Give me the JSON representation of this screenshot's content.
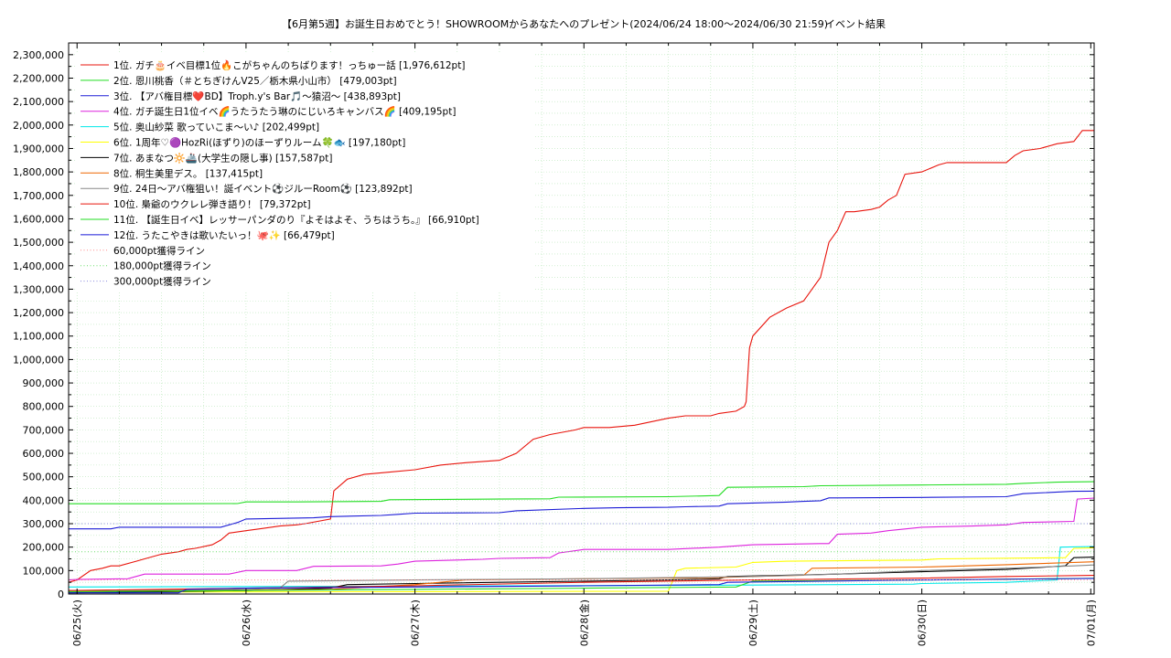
{
  "chart_data": {
    "type": "line",
    "title": "【6月第5週】お誕生日おめでとう！SHOWROOMからあなたへのプレゼント(2024/06/24 18:00〜2024/06/30 21:59)",
    "subtitle": "イベント結果",
    "ylim": [
      0,
      2350000
    ],
    "yticks": [
      0,
      100000,
      200000,
      300000,
      400000,
      500000,
      600000,
      700000,
      800000,
      900000,
      1000000,
      1100000,
      1200000,
      1300000,
      1400000,
      1500000,
      1600000,
      1700000,
      1800000,
      1900000,
      2000000,
      2100000,
      2200000,
      2300000
    ],
    "ytick_labels": [
      "0",
      "100,000",
      "200,000",
      "300,000",
      "400,000",
      "500,000",
      "600,000",
      "700,000",
      "800,000",
      "900,000",
      "1,000,000",
      "1,100,000",
      "1,200,000",
      "1,300,000",
      "1,400,000",
      "1,500,000",
      "1,600,000",
      "1,700,000",
      "1,800,000",
      "1,900,000",
      "2,000,000",
      "2,100,000",
      "2,200,000",
      "2,300,000"
    ],
    "xlim": [
      -0.05,
      6.02
    ],
    "xticks": [
      0,
      1,
      2,
      3,
      4,
      5,
      6
    ],
    "xtick_labels": [
      "06/25(火)",
      "06/26(水)",
      "06/27(木)",
      "06/28(金)",
      "06/29(土)",
      "06/30(日)",
      "07/01(月)"
    ],
    "grid": true,
    "legend_position": "top-left",
    "series": [
      {
        "name": "1位. ガチ🎂イベ目標1位🔥こがちゃんのちばります！っちゅー話 [1,976,612pt]",
        "color": "#e8140c",
        "style": "solid",
        "x": [
          -0.05,
          0.0,
          0.08,
          0.15,
          0.2,
          0.25,
          0.35,
          0.4,
          0.5,
          0.6,
          0.65,
          0.7,
          0.8,
          0.85,
          0.9,
          1.0,
          1.1,
          1.2,
          1.3,
          1.35,
          1.5,
          1.52,
          1.6,
          1.7,
          1.85,
          2.0,
          2.15,
          2.3,
          2.5,
          2.6,
          2.7,
          2.8,
          2.95,
          3.0,
          3.15,
          3.3,
          3.5,
          3.6,
          3.75,
          3.8,
          3.9,
          3.95,
          3.96,
          3.98,
          4.0,
          4.1,
          4.2,
          4.3,
          4.35,
          4.4,
          4.45,
          4.5,
          4.55,
          4.6,
          4.7,
          4.75,
          4.8,
          4.85,
          4.9,
          5.0,
          5.1,
          5.15,
          5.2,
          5.5,
          5.55,
          5.6,
          5.7,
          5.8,
          5.9,
          5.95,
          6.02
        ],
        "y": [
          50000,
          60000,
          100000,
          110000,
          120000,
          120000,
          140000,
          150000,
          170000,
          180000,
          190000,
          195000,
          210000,
          230000,
          260000,
          270000,
          280000,
          290000,
          295000,
          300000,
          320000,
          440000,
          490000,
          510000,
          520000,
          530000,
          550000,
          560000,
          570000,
          600000,
          660000,
          680000,
          700000,
          710000,
          710000,
          720000,
          750000,
          760000,
          760000,
          770000,
          780000,
          800000,
          820000,
          1050000,
          1100000,
          1180000,
          1220000,
          1250000,
          1300000,
          1350000,
          1500000,
          1550000,
          1630000,
          1630000,
          1640000,
          1650000,
          1680000,
          1700000,
          1790000,
          1800000,
          1830000,
          1840000,
          1840000,
          1840000,
          1870000,
          1890000,
          1900000,
          1920000,
          1930000,
          1976612,
          1976612
        ]
      },
      {
        "name": "2位. 恩川桃香（＃とちぎけんV25／栃木県小山市） [479,003pt]",
        "color": "#22dd22",
        "style": "solid",
        "x": [
          -0.05,
          0.5,
          0.95,
          1.0,
          1.3,
          1.8,
          1.85,
          2.5,
          2.8,
          2.85,
          3.5,
          3.8,
          3.85,
          4.3,
          4.4,
          5.0,
          5.5,
          5.6,
          5.8,
          6.02
        ],
        "y": [
          385000,
          385000,
          386000,
          393000,
          393000,
          395000,
          402000,
          405000,
          406000,
          413000,
          415000,
          420000,
          455000,
          458000,
          462000,
          465000,
          468000,
          472000,
          477000,
          479003
        ]
      },
      {
        "name": "3位. 【アバ権目標❤️BD】Troph.y's Bar🎵〜猿沼〜 [438,893pt]",
        "color": "#1b1bd6",
        "style": "solid",
        "x": [
          -0.05,
          0.2,
          0.25,
          0.85,
          0.95,
          1.0,
          1.4,
          1.5,
          1.8,
          1.9,
          2.0,
          2.5,
          2.6,
          3.0,
          3.2,
          3.5,
          3.6,
          3.8,
          3.85,
          4.1,
          4.2,
          4.3,
          4.4,
          4.45,
          4.5,
          5.0,
          5.5,
          5.6,
          5.9,
          6.02
        ],
        "y": [
          278000,
          278000,
          285000,
          285000,
          305000,
          320000,
          325000,
          330000,
          335000,
          340000,
          345000,
          347000,
          355000,
          365000,
          368000,
          370000,
          372000,
          375000,
          385000,
          390000,
          392000,
          395000,
          398000,
          410000,
          410000,
          412000,
          415000,
          428000,
          438000,
          438893
        ]
      },
      {
        "name": "4位. ガチ誕生日1位イベ🌈うたうたう琳のにじいろキャンバス🌈 [409,195pt]",
        "color": "#dd22dd",
        "style": "solid",
        "x": [
          -0.05,
          0.0,
          0.3,
          0.4,
          0.9,
          1.0,
          1.3,
          1.4,
          1.8,
          1.9,
          2.0,
          2.4,
          2.5,
          2.8,
          2.85,
          3.0,
          3.5,
          3.8,
          4.0,
          4.4,
          4.45,
          4.5,
          4.7,
          4.8,
          5.0,
          5.3,
          5.5,
          5.6,
          5.9,
          5.92,
          6.02
        ],
        "y": [
          60000,
          62000,
          65000,
          85000,
          85000,
          100000,
          100000,
          118000,
          120000,
          128000,
          140000,
          148000,
          152000,
          155000,
          175000,
          190000,
          190000,
          200000,
          210000,
          215000,
          215000,
          255000,
          260000,
          270000,
          285000,
          290000,
          295000,
          305000,
          310000,
          405000,
          409195
        ]
      },
      {
        "name": "5位. 奥山紗菜 歌っていこま〜い♪ [202,499pt]",
        "color": "#00e8e8",
        "style": "solid",
        "x": [
          -0.05,
          1.0,
          2.0,
          3.0,
          4.0,
          4.5,
          4.95,
          5.0,
          5.5,
          5.8,
          5.82,
          6.02
        ],
        "y": [
          30000,
          32000,
          34000,
          36000,
          38000,
          40000,
          42000,
          45000,
          50000,
          60000,
          200000,
          202499
        ]
      },
      {
        "name": "6位. 1周年♡🟣HozRi(ほずり)のほーずりルーム🍀🐟 [197,180pt]",
        "color": "#ffff00",
        "style": "solid",
        "x": [
          -0.05,
          2.0,
          3.5,
          3.55,
          3.6,
          3.9,
          4.0,
          4.2,
          5.0,
          5.1,
          5.85,
          5.9,
          6.02
        ],
        "y": [
          8000,
          10000,
          12000,
          100000,
          110000,
          115000,
          135000,
          140000,
          145000,
          150000,
          155000,
          195000,
          197180
        ]
      },
      {
        "name": "7位. あまなつ🔆🚢(大学生の隠し事) [157,587pt]",
        "color": "#000000",
        "style": "solid",
        "x": [
          -0.05,
          1.0,
          1.5,
          1.6,
          2.0,
          3.0,
          3.5,
          3.8,
          3.85,
          4.5,
          5.0,
          5.5,
          5.85,
          5.9,
          6.02
        ],
        "y": [
          5000,
          15000,
          25000,
          40000,
          45000,
          55000,
          60000,
          65000,
          75000,
          85000,
          95000,
          105000,
          120000,
          155000,
          157587
        ]
      },
      {
        "name": "8位. 桐生美里デス。 [137,415pt]",
        "color": "#ee6600",
        "style": "solid",
        "x": [
          -0.05,
          1.5,
          2.0,
          2.3,
          3.0,
          3.8,
          4.0,
          4.3,
          4.35,
          5.0,
          5.5,
          5.9,
          6.02
        ],
        "y": [
          10000,
          20000,
          40000,
          60000,
          65000,
          70000,
          75000,
          80000,
          110000,
          115000,
          125000,
          135000,
          137415
        ]
      },
      {
        "name": "9位. 24日〜アバ権狙い！誕イベント⚽ジルーRoom⚽ [123,892pt]",
        "color": "#888888",
        "style": "solid",
        "x": [
          -0.05,
          1.0,
          1.2,
          1.25,
          2.0,
          3.0,
          4.0,
          4.5,
          5.0,
          5.5,
          5.9,
          6.02
        ],
        "y": [
          15000,
          20000,
          25000,
          55000,
          60000,
          65000,
          75000,
          85000,
          100000,
          110000,
          120000,
          123892
        ]
      },
      {
        "name": "10位. 梟爺のウクレレ弾き語り！ [79,372pt]",
        "color": "#e8140c",
        "style": "solid",
        "x": [
          -0.05,
          1.0,
          2.0,
          3.0,
          4.0,
          5.0,
          5.5,
          6.02
        ],
        "y": [
          15000,
          25000,
          35000,
          50000,
          60000,
          68000,
          75000,
          79372
        ]
      },
      {
        "name": "11位. 【誕生日イベ】レッサーパンダのり『よそはよそ、うちはうち。』 [66,910pt]",
        "color": "#22dd22",
        "style": "solid",
        "x": [
          -0.05,
          1.0,
          2.0,
          3.0,
          3.9,
          4.0,
          5.0,
          6.02
        ],
        "y": [
          10000,
          15000,
          20000,
          25000,
          30000,
          55000,
          60000,
          66910
        ]
      },
      {
        "name": "12位. うたこやきは歌いたいっ！🐙✨ [66,479pt]",
        "color": "#1b1bd6",
        "style": "solid",
        "x": [
          -0.05,
          0.6,
          0.65,
          1.0,
          2.0,
          3.0,
          3.8,
          3.85,
          5.0,
          6.02
        ],
        "y": [
          5000,
          5000,
          20000,
          25000,
          30000,
          35000,
          40000,
          50000,
          60000,
          66479
        ]
      },
      {
        "name": "60,000pt獲得ライン",
        "color": "#ff8888",
        "style": "dotted",
        "x": [
          -0.05,
          6.02
        ],
        "y": [
          60000,
          60000
        ]
      },
      {
        "name": "180,000pt獲得ライン",
        "color": "#66dd66",
        "style": "dotted",
        "x": [
          -0.05,
          6.02
        ],
        "y": [
          180000,
          180000
        ]
      },
      {
        "name": "300,000pt獲得ライン",
        "color": "#8888dd",
        "style": "dotted",
        "x": [
          -0.05,
          6.02
        ],
        "y": [
          300000,
          300000
        ]
      }
    ]
  }
}
